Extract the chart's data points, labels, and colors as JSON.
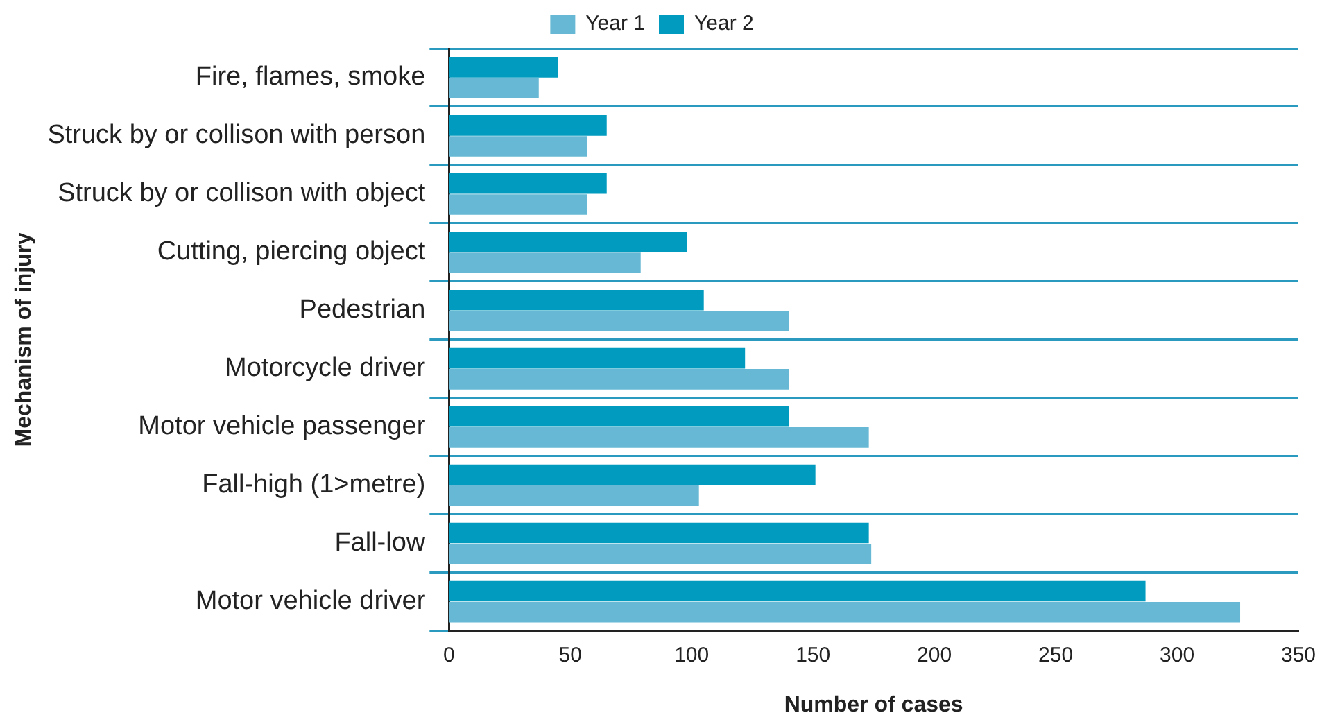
{
  "chart_data": {
    "type": "bar",
    "orientation": "horizontal",
    "xlabel": "Number of cases",
    "ylabel": "Mechanism of injury",
    "categories": [
      "Fire, flames, smoke",
      "Struck by or collison with person",
      "Struck by or collison with object",
      "Cutting, piercing object",
      "Pedestrian",
      "Motorcycle driver",
      "Motor vehicle passenger",
      "Fall-high (1>metre)",
      "Fall-low",
      "Motor vehicle driver"
    ],
    "series": [
      {
        "name": "Year 1",
        "color": "#66b8d4",
        "values": [
          37,
          57,
          57,
          79,
          140,
          140,
          173,
          103,
          174,
          326
        ]
      },
      {
        "name": "Year 2",
        "color": "#009bbe",
        "values": [
          45,
          65,
          65,
          98,
          105,
          122,
          140,
          151,
          173,
          287
        ]
      }
    ],
    "xlim": [
      0,
      350
    ],
    "xticks": [
      0,
      50,
      100,
      150,
      200,
      250,
      300,
      350
    ],
    "grid": "y",
    "legend": "top"
  }
}
